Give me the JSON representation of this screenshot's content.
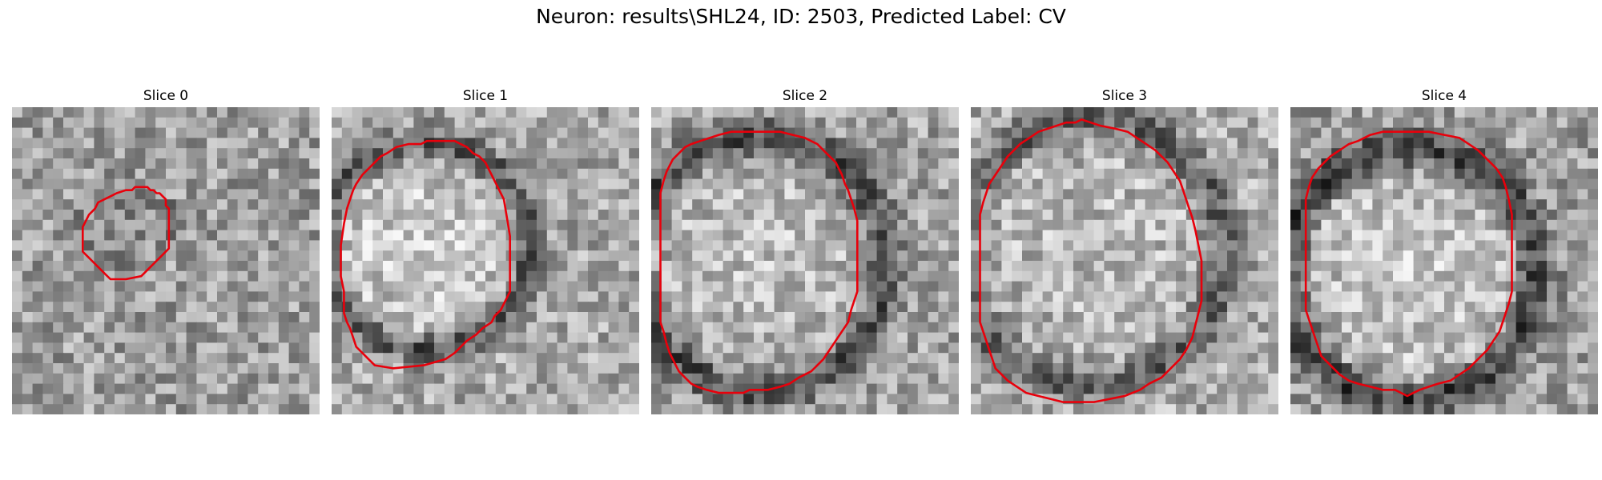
{
  "figure": {
    "title": "Neuron: results\\SHL24, ID: 2503, Predicted Label: CV",
    "neuron_path": "results\\SHL24",
    "id": 2503,
    "predicted_label": "CV"
  },
  "colors": {
    "background": "#ffffff",
    "contour": "#e8000b",
    "colormap": "gray"
  },
  "panels": [
    {
      "label": "Slice 0",
      "noise_seed": 11,
      "base_gray": 0.62,
      "ring_darkness": 0.1,
      "interior_brightness": -0.08,
      "contour_points": [
        [
          39,
          27
        ],
        [
          40,
          26
        ],
        [
          44,
          26
        ],
        [
          45,
          27
        ],
        [
          46,
          27
        ],
        [
          47,
          28
        ],
        [
          48,
          28
        ],
        [
          49,
          29
        ],
        [
          50,
          30
        ],
        [
          50,
          32
        ],
        [
          51,
          33
        ],
        [
          51,
          46
        ],
        [
          49,
          48
        ],
        [
          47,
          50
        ],
        [
          45,
          52
        ],
        [
          43,
          54
        ],
        [
          42,
          55
        ],
        [
          37,
          56
        ],
        [
          32,
          56
        ],
        [
          30,
          54
        ],
        [
          28,
          52
        ],
        [
          26,
          50
        ],
        [
          25,
          49
        ],
        [
          23,
          47
        ],
        [
          23,
          39
        ],
        [
          24,
          37
        ],
        [
          25,
          35
        ],
        [
          27,
          33
        ],
        [
          28,
          31
        ],
        [
          30,
          30
        ],
        [
          32,
          29
        ],
        [
          34,
          28
        ],
        [
          37,
          27
        ]
      ]
    },
    {
      "label": "Slice 1",
      "noise_seed": 23,
      "base_gray": 0.66,
      "ring_darkness": 0.32,
      "interior_brightness": 0.18,
      "contour_points": [
        [
          29,
          12
        ],
        [
          31,
          11
        ],
        [
          40,
          11
        ],
        [
          42,
          12
        ],
        [
          44,
          13
        ],
        [
          46,
          15
        ],
        [
          48,
          16
        ],
        [
          50,
          18
        ],
        [
          51,
          20
        ],
        [
          52,
          22
        ],
        [
          53,
          24
        ],
        [
          54,
          26
        ],
        [
          55,
          28
        ],
        [
          56,
          30
        ],
        [
          57,
          36
        ],
        [
          58,
          42
        ],
        [
          58,
          60
        ],
        [
          57,
          62
        ],
        [
          56,
          64
        ],
        [
          55,
          66
        ],
        [
          53,
          68
        ],
        [
          52,
          70
        ],
        [
          49,
          72
        ],
        [
          47,
          74
        ],
        [
          44,
          76
        ],
        [
          42,
          78
        ],
        [
          40,
          80
        ],
        [
          37,
          82
        ],
        [
          30,
          84
        ],
        [
          20,
          85
        ],
        [
          14,
          84
        ],
        [
          12,
          82
        ],
        [
          10,
          80
        ],
        [
          8,
          78
        ],
        [
          7,
          75
        ],
        [
          6,
          72
        ],
        [
          5,
          70
        ],
        [
          4,
          67
        ],
        [
          4,
          60
        ],
        [
          3,
          55
        ],
        [
          3,
          45
        ],
        [
          4,
          38
        ],
        [
          5,
          33
        ],
        [
          6,
          30
        ],
        [
          7,
          27
        ],
        [
          8,
          25
        ],
        [
          10,
          22
        ],
        [
          12,
          20
        ],
        [
          14,
          18
        ],
        [
          16,
          16
        ],
        [
          18,
          15
        ],
        [
          21,
          13
        ],
        [
          25,
          12
        ]
      ]
    },
    {
      "label": "Slice 2",
      "noise_seed": 37,
      "base_gray": 0.64,
      "ring_darkness": 0.34,
      "interior_brightness": 0.12,
      "contour_points": [
        [
          22,
          9
        ],
        [
          26,
          8
        ],
        [
          42,
          8
        ],
        [
          46,
          9
        ],
        [
          50,
          10
        ],
        [
          54,
          12
        ],
        [
          56,
          14
        ],
        [
          58,
          16
        ],
        [
          60,
          18
        ],
        [
          61,
          20
        ],
        [
          62,
          22
        ],
        [
          63,
          25
        ],
        [
          64,
          27
        ],
        [
          65,
          30
        ],
        [
          66,
          33
        ],
        [
          67,
          37
        ],
        [
          67,
          60
        ],
        [
          66,
          63
        ],
        [
          65,
          66
        ],
        [
          64,
          70
        ],
        [
          62,
          73
        ],
        [
          60,
          76
        ],
        [
          58,
          79
        ],
        [
          56,
          82
        ],
        [
          54,
          84
        ],
        [
          52,
          86
        ],
        [
          48,
          88
        ],
        [
          45,
          90
        ],
        [
          42,
          91
        ],
        [
          38,
          92
        ],
        [
          32,
          92
        ],
        [
          30,
          93
        ],
        [
          22,
          93
        ],
        [
          18,
          92
        ],
        [
          15,
          91
        ],
        [
          13,
          90
        ],
        [
          11,
          88
        ],
        [
          9,
          86
        ],
        [
          8,
          84
        ],
        [
          7,
          82
        ],
        [
          6,
          80
        ],
        [
          5,
          77
        ],
        [
          4,
          73
        ],
        [
          3,
          70
        ],
        [
          3,
          28
        ],
        [
          4,
          24
        ],
        [
          5,
          21
        ],
        [
          6,
          19
        ],
        [
          7,
          17
        ],
        [
          9,
          15
        ],
        [
          11,
          13
        ],
        [
          13,
          12
        ],
        [
          16,
          11
        ],
        [
          19,
          10
        ]
      ]
    },
    {
      "label": "Slice 3",
      "noise_seed": 53,
      "base_gray": 0.68,
      "ring_darkness": 0.3,
      "interior_brightness": 0.05,
      "contour_points": [
        [
          34,
          5
        ],
        [
          36,
          4
        ],
        [
          39,
          5
        ],
        [
          42,
          6
        ],
        [
          47,
          7
        ],
        [
          51,
          8
        ],
        [
          54,
          10
        ],
        [
          57,
          12
        ],
        [
          60,
          14
        ],
        [
          62,
          16
        ],
        [
          64,
          18
        ],
        [
          66,
          21
        ],
        [
          68,
          24
        ],
        [
          69,
          27
        ],
        [
          70,
          30
        ],
        [
          71,
          33
        ],
        [
          72,
          36
        ],
        [
          73,
          40
        ],
        [
          74,
          45
        ],
        [
          75,
          50
        ],
        [
          75,
          63
        ],
        [
          74,
          67
        ],
        [
          73,
          71
        ],
        [
          72,
          75
        ],
        [
          70,
          79
        ],
        [
          68,
          82
        ],
        [
          65,
          85
        ],
        [
          62,
          88
        ],
        [
          58,
          90
        ],
        [
          55,
          92
        ],
        [
          50,
          94
        ],
        [
          45,
          95
        ],
        [
          40,
          96
        ],
        [
          30,
          96
        ],
        [
          26,
          95
        ],
        [
          22,
          94
        ],
        [
          18,
          93
        ],
        [
          15,
          91
        ],
        [
          12,
          89
        ],
        [
          10,
          87
        ],
        [
          8,
          85
        ],
        [
          7,
          82
        ],
        [
          6,
          79
        ],
        [
          5,
          76
        ],
        [
          4,
          73
        ],
        [
          3,
          70
        ],
        [
          3,
          35
        ],
        [
          4,
          31
        ],
        [
          5,
          28
        ],
        [
          6,
          25
        ],
        [
          8,
          22
        ],
        [
          10,
          19
        ],
        [
          12,
          16
        ],
        [
          14,
          14
        ],
        [
          16,
          12
        ],
        [
          19,
          10
        ],
        [
          22,
          8
        ],
        [
          25,
          7
        ],
        [
          28,
          6
        ],
        [
          31,
          5
        ]
      ]
    },
    {
      "label": "Slice 4",
      "noise_seed": 71,
      "base_gray": 0.62,
      "ring_darkness": 0.36,
      "interior_brightness": 0.2,
      "contour_points": [
        [
          30,
          8
        ],
        [
          35,
          8
        ],
        [
          45,
          8
        ],
        [
          50,
          9
        ],
        [
          55,
          10
        ],
        [
          58,
          12
        ],
        [
          61,
          14
        ],
        [
          63,
          16
        ],
        [
          65,
          18
        ],
        [
          67,
          20
        ],
        [
          69,
          23
        ],
        [
          70,
          26
        ],
        [
          71,
          30
        ],
        [
          72,
          35
        ],
        [
          72,
          60
        ],
        [
          71,
          64
        ],
        [
          70,
          67
        ],
        [
          69,
          70
        ],
        [
          68,
          73
        ],
        [
          66,
          76
        ],
        [
          64,
          79
        ],
        [
          62,
          81
        ],
        [
          60,
          83
        ],
        [
          58,
          85
        ],
        [
          55,
          87
        ],
        [
          52,
          89
        ],
        [
          48,
          90
        ],
        [
          45,
          91
        ],
        [
          42,
          92
        ],
        [
          40,
          93
        ],
        [
          38,
          94
        ],
        [
          36,
          93
        ],
        [
          34,
          92
        ],
        [
          30,
          92
        ],
        [
          26,
          91
        ],
        [
          22,
          90
        ],
        [
          19,
          89
        ],
        [
          16,
          87
        ],
        [
          14,
          85
        ],
        [
          12,
          83
        ],
        [
          10,
          81
        ],
        [
          9,
          78
        ],
        [
          8,
          75
        ],
        [
          7,
          72
        ],
        [
          6,
          69
        ],
        [
          5,
          66
        ],
        [
          5,
          30
        ],
        [
          6,
          26
        ],
        [
          7,
          23
        ],
        [
          9,
          20
        ],
        [
          11,
          18
        ],
        [
          13,
          16
        ],
        [
          16,
          14
        ],
        [
          19,
          12
        ],
        [
          22,
          11
        ],
        [
          26,
          9
        ]
      ]
    }
  ]
}
